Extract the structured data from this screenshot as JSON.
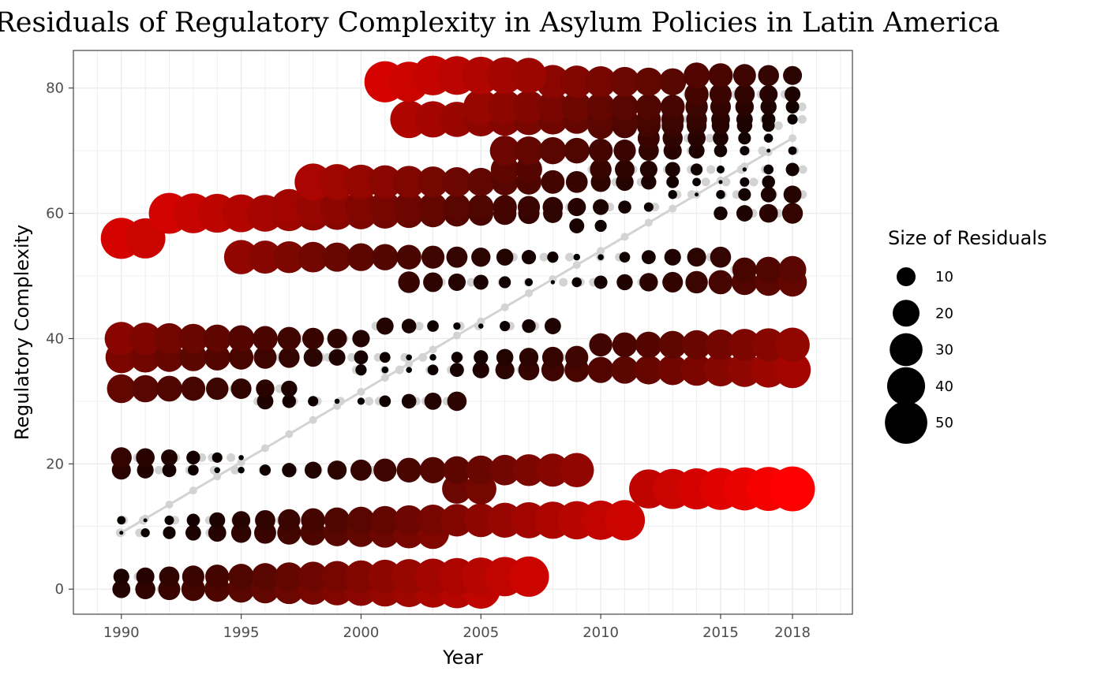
{
  "chart_data": {
    "type": "scatter",
    "title": "Residuals of Regulatory Complexity in Asylum Policies in Latin America",
    "xlabel": "Year",
    "ylabel": "Regulatory Complexity",
    "xlim": [
      1988,
      2020.5
    ],
    "ylim": [
      -4,
      86
    ],
    "x_ticks": [
      1990,
      1995,
      2000,
      2005,
      2010,
      2015,
      2018
    ],
    "y_ticks": [
      0,
      20,
      40,
      60,
      80
    ],
    "grid": true,
    "theme": "bw",
    "fitted_line": {
      "x": [
        1990,
        2018
      ],
      "y": [
        9,
        72
      ],
      "color": "#d3d3d3"
    },
    "color_scale": {
      "low": "#000000",
      "high": "#ff0000",
      "min": 0,
      "max": 56
    },
    "legend": {
      "title": "Size of Residuals",
      "position": "right",
      "breaks": [
        10,
        20,
        30,
        40,
        50
      ],
      "labels": [
        "10",
        "20",
        "30",
        "40",
        "50"
      ]
    },
    "ref_points": [
      {
        "y": 0,
        "x": [
          1990,
          1991,
          1992,
          1993,
          1994,
          1995,
          1996,
          1997,
          1998,
          1999,
          2000,
          2001,
          2002,
          2003,
          2004,
          2005
        ]
      },
      {
        "y": 2,
        "x": [
          1990,
          1991,
          1992,
          1993,
          1994,
          1995,
          1996,
          1997,
          1998,
          1999,
          2000,
          2001,
          2002,
          2003,
          2004,
          2005,
          2006,
          2007
        ]
      },
      {
        "y": 9,
        "x": [
          1990,
          1991,
          1992,
          1993,
          1994,
          1995,
          1996,
          1997,
          1998,
          1999,
          2000,
          2001,
          2002,
          2003
        ]
      },
      {
        "y": 11,
        "x": [
          1990,
          1991,
          1992,
          1993,
          1994,
          1995,
          1996,
          1997,
          1998,
          1999,
          2000,
          2001,
          2002,
          2003,
          2004,
          2005,
          2006,
          2007,
          2008,
          2009,
          2010,
          2011
        ]
      },
      {
        "y": 16,
        "x": [
          2004,
          2005,
          2012,
          2013,
          2014,
          2015,
          2016,
          2017,
          2018
        ]
      },
      {
        "y": 19,
        "x": [
          1990,
          1991,
          1992,
          1993,
          1994,
          1995,
          1996,
          1997,
          1998,
          1999,
          2000,
          2001,
          2002,
          2003,
          2004,
          2005,
          2006,
          2007,
          2008,
          2009
        ]
      },
      {
        "y": 21,
        "x": [
          1990,
          1991,
          1992,
          1993,
          1994,
          1995
        ]
      },
      {
        "y": 30,
        "x": [
          1996,
          1997,
          1998,
          1999,
          2000,
          2001,
          2002,
          2003,
          2004
        ]
      },
      {
        "y": 32,
        "x": [
          1990,
          1991,
          1992,
          1993,
          1994,
          1995,
          1996,
          1997
        ]
      },
      {
        "y": 35,
        "x": [
          2000,
          2001,
          2002,
          2003,
          2004,
          2005,
          2006,
          2007,
          2008,
          2009,
          2010,
          2011,
          2012,
          2013,
          2014,
          2015,
          2016,
          2017,
          2018
        ]
      },
      {
        "y": 37,
        "x": [
          1990,
          1991,
          1992,
          1993,
          1994,
          1995,
          1996,
          1997,
          1998,
          1999,
          2000,
          2001,
          2002,
          2003,
          2004,
          2005,
          2006,
          2007,
          2008,
          2009
        ]
      },
      {
        "y": 39,
        "x": [
          2010,
          2011,
          2012,
          2013,
          2014,
          2015,
          2016,
          2017,
          2018
        ]
      },
      {
        "y": 40,
        "x": [
          1990,
          1991,
          1992,
          1993,
          1994,
          1995,
          1996,
          1997,
          1998,
          1999,
          2000
        ]
      },
      {
        "y": 42,
        "x": [
          2001,
          2002,
          2003,
          2004,
          2005,
          2006,
          2007,
          2008
        ]
      },
      {
        "y": 49,
        "x": [
          2002,
          2003,
          2004,
          2005,
          2006,
          2007,
          2008,
          2009,
          2010,
          2011,
          2012,
          2013,
          2014,
          2015,
          2016,
          2017,
          2018
        ]
      },
      {
        "y": 51,
        "x": [
          2016,
          2017,
          2018
        ]
      },
      {
        "y": 53,
        "x": [
          1995,
          1996,
          1997,
          1998,
          1999,
          2000,
          2001,
          2002,
          2003,
          2004,
          2005,
          2006,
          2007,
          2008,
          2009,
          2010,
          2011,
          2012,
          2013,
          2014,
          2015
        ]
      },
      {
        "y": 56,
        "x": [
          1990,
          1991
        ]
      },
      {
        "y": 58,
        "x": [
          2009,
          2010
        ]
      },
      {
        "y": 60,
        "x": [
          1992,
          1993,
          1994,
          1995,
          1996,
          1997,
          1998,
          1999,
          2000,
          2001,
          2002,
          2003,
          2004,
          2005,
          2006,
          2007,
          2008,
          2015,
          2016,
          2017,
          2018
        ]
      },
      {
        "y": 61,
        "x": [
          1997,
          1998,
          1999,
          2000,
          2001,
          2002,
          2003,
          2004,
          2005,
          2006,
          2007,
          2008,
          2009,
          2010,
          2011,
          2012
        ]
      },
      {
        "y": 63,
        "x": [
          2013,
          2014,
          2015,
          2016,
          2017,
          2018
        ]
      },
      {
        "y": 65,
        "x": [
          1998,
          1999,
          2000,
          2001,
          2002,
          2003,
          2004,
          2005,
          2006,
          2007,
          2008,
          2009,
          2010,
          2011,
          2012,
          2013,
          2014,
          2015,
          2016,
          2017
        ]
      },
      {
        "y": 67,
        "x": [
          2006,
          2007,
          2010,
          2011,
          2012,
          2013,
          2014,
          2015,
          2016,
          2017,
          2018
        ]
      },
      {
        "y": 70,
        "x": [
          2006,
          2007,
          2008,
          2009,
          2010,
          2011,
          2012,
          2013,
          2014,
          2015,
          2016,
          2017,
          2018
        ]
      },
      {
        "y": 72,
        "x": [
          2012,
          2013,
          2014,
          2015,
          2016,
          2017
        ]
      },
      {
        "y": 74,
        "x": [
          2010,
          2011,
          2012,
          2013,
          2014,
          2015,
          2016,
          2017
        ]
      },
      {
        "y": 75,
        "x": [
          2002,
          2003,
          2004,
          2005,
          2006,
          2007,
          2008,
          2009,
          2010,
          2011,
          2012,
          2013,
          2014,
          2015,
          2016,
          2017,
          2018
        ]
      },
      {
        "y": 77,
        "x": [
          2005,
          2006,
          2007,
          2008,
          2009,
          2010,
          2011,
          2012,
          2013,
          2014,
          2015,
          2016,
          2017,
          2018
        ]
      },
      {
        "y": 79,
        "x": [
          2014,
          2015,
          2016,
          2017,
          2018
        ]
      },
      {
        "y": 81,
        "x": [
          2001,
          2002,
          2008,
          2009,
          2010,
          2011,
          2012,
          2013
        ]
      },
      {
        "y": 82,
        "x": [
          2003,
          2004,
          2005,
          2006,
          2007,
          2014,
          2015,
          2016,
          2017,
          2018
        ]
      }
    ]
  }
}
